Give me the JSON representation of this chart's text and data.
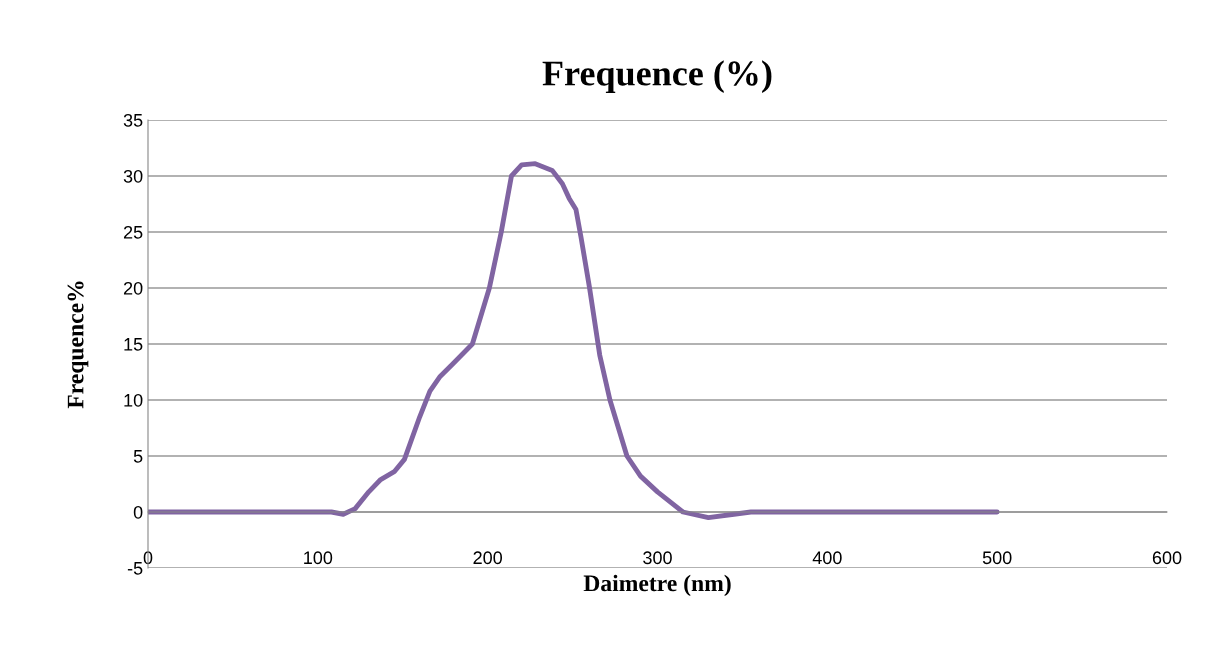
{
  "chart_data": {
    "type": "line",
    "title": "Frequence (%)",
    "xlabel": "Daimetre (nm)",
    "ylabel": "Frequence%",
    "x": [
      0,
      50,
      100,
      108,
      115,
      122,
      130,
      137,
      145,
      151,
      160,
      166,
      172,
      180,
      191,
      201,
      208,
      214,
      220,
      228,
      238,
      244,
      248,
      252,
      255,
      260,
      266,
      272,
      282,
      290,
      300,
      315,
      330,
      345,
      355,
      400,
      450,
      500
    ],
    "series": [
      {
        "color": "#8064a2",
        "values": [
          0,
          0,
          0,
          0,
          -0.2,
          0.3,
          1.8,
          2.9,
          3.6,
          4.7,
          8.5,
          10.8,
          12.1,
          13.3,
          15,
          20,
          25,
          30,
          31,
          31.1,
          30.5,
          29.3,
          28,
          27,
          24.5,
          20,
          14,
          10,
          5,
          3.2,
          1.8,
          0,
          -0.5,
          -0.2,
          0,
          0,
          0,
          0
        ]
      }
    ],
    "xlim": [
      0,
      600
    ],
    "xticks": [
      0,
      100,
      200,
      300,
      400,
      500,
      600
    ],
    "ylim": [
      -5,
      35
    ],
    "yticks": [
      -5,
      0,
      5,
      10,
      15,
      20,
      25,
      30,
      35
    ],
    "grid": "y",
    "marker": "none",
    "line_style": "solid"
  }
}
